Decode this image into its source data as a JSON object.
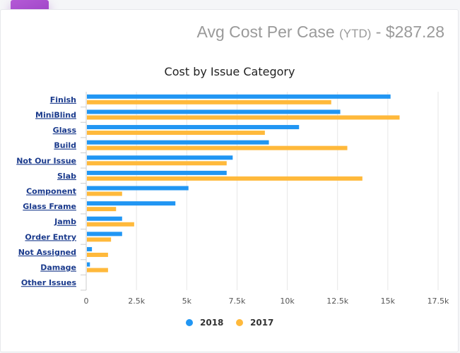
{
  "header": {
    "icon": "dollar-icon",
    "icon_glyph": "$",
    "title_main": "Avg Cost Per Case ",
    "title_ytd": "(YTD)",
    "title_value": " - $287.28"
  },
  "colors": {
    "series_2018": "#2196f3",
    "series_2017": "#ffb93b",
    "grid": "#e6e6e6",
    "badge": "#9b3ec9"
  },
  "chart_data": {
    "type": "bar",
    "orientation": "horizontal",
    "title": "Cost by Issue Category",
    "xlabel": "",
    "ylabel": "",
    "categories": [
      "Finish",
      "MiniBlind",
      "Glass",
      "Build",
      "Not Our Issue",
      "Slab",
      "Component",
      "Glass Frame",
      "Jamb",
      "Order Entry",
      "Not Assigned",
      "Damage",
      "Other Issues"
    ],
    "series": [
      {
        "name": "2018",
        "values": [
          15100,
          12600,
          10550,
          9050,
          7250,
          6950,
          5050,
          4400,
          1750,
          1750,
          250,
          150,
          0
        ]
      },
      {
        "name": "2017",
        "values": [
          12150,
          15550,
          8850,
          12950,
          6950,
          13700,
          1750,
          1450,
          2350,
          1200,
          1050,
          1050,
          0
        ]
      }
    ],
    "xlim": [
      0,
      17500
    ],
    "xticks": [
      0,
      2500,
      5000,
      7500,
      10000,
      12500,
      15000,
      17500
    ],
    "xtick_labels": [
      "0",
      "2.5k",
      "5k",
      "7.5k",
      "10k",
      "12.5k",
      "15k",
      "17.5k"
    ],
    "grid": true,
    "legend": "bottom-center"
  }
}
